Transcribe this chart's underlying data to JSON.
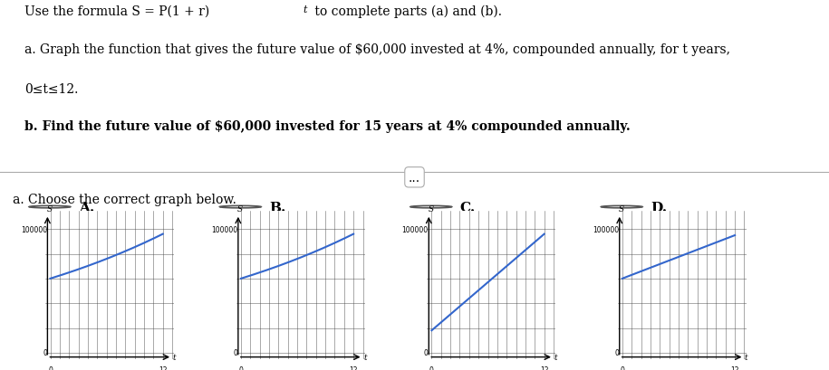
{
  "title_text": "Use the formula S = P(1 + r)ᵗ to complete parts (a) and (b).",
  "part_a_text": "a. Graph the function that gives the future value of $60,000 invested at 4%, compounded annually, for t years,\n0≤t≤12.",
  "part_b_text": "b. Find the future value of $60,000 invested for 15 years at 4% compounded annually.",
  "choose_text": "a. Choose the correct graph below.",
  "P": 60000,
  "r": 0.04,
  "t_max": 12,
  "y_max": 100000,
  "graph_labels": [
    "A.",
    "B.",
    "C.",
    "D."
  ],
  "line_color": "#3366cc",
  "grid_color": "#555555",
  "axis_color": "#000000",
  "bg_color": "#ffffff",
  "text_color": "#000000"
}
